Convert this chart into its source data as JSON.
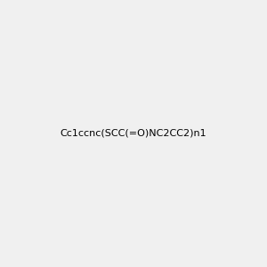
{
  "smiles": "Cc1ccnc(SCC(=O)NC2CC2)n1",
  "image_size": 300,
  "background_color": "#f0f0f0"
}
